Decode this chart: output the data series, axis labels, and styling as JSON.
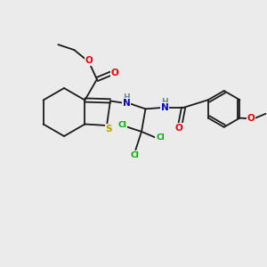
{
  "bg_color": "#ebebeb",
  "bond_color": "#1a1a1a",
  "bond_lw": 1.3,
  "atom_colors": {
    "S": "#b8a000",
    "O": "#ee0000",
    "N": "#0000cc",
    "Cl": "#00aa00",
    "H": "#6a8a8a"
  },
  "fs": 7.5,
  "fs_small": 6.5
}
